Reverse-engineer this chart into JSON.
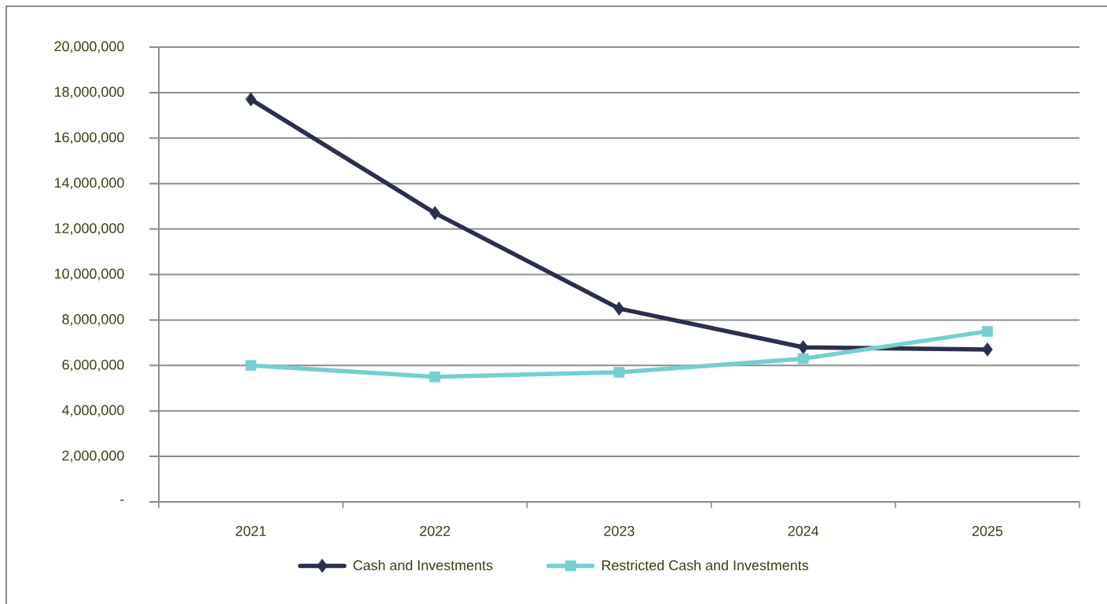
{
  "chart_data": {
    "type": "line",
    "categories": [
      "2021",
      "2022",
      "2023",
      "2024",
      "2025"
    ],
    "series": [
      {
        "name": "Cash and Investments",
        "color": "#2b2f4e",
        "marker": "diamond",
        "values": [
          17700000,
          12700000,
          8500000,
          6800000,
          6700000
        ]
      },
      {
        "name": "Restricted Cash and Investments",
        "color": "#76cfcf",
        "marker": "square",
        "values": [
          6000000,
          5500000,
          5700000,
          6300000,
          7500000
        ]
      }
    ],
    "ylim": [
      0,
      20000000
    ],
    "yticks": [
      {
        "value": 0,
        "label": "-"
      },
      {
        "value": 2000000,
        "label": "2,000,000"
      },
      {
        "value": 4000000,
        "label": "4,000,000"
      },
      {
        "value": 6000000,
        "label": "6,000,000"
      },
      {
        "value": 8000000,
        "label": "8,000,000"
      },
      {
        "value": 10000000,
        "label": "10,000,000"
      },
      {
        "value": 12000000,
        "label": "12,000,000"
      },
      {
        "value": 14000000,
        "label": "14,000,000"
      },
      {
        "value": 16000000,
        "label": "16,000,000"
      },
      {
        "value": 18000000,
        "label": "18,000,000"
      },
      {
        "value": 20000000,
        "label": "20,000,000"
      }
    ],
    "grid": "y",
    "legend": "bottom",
    "line_style": "solid"
  }
}
